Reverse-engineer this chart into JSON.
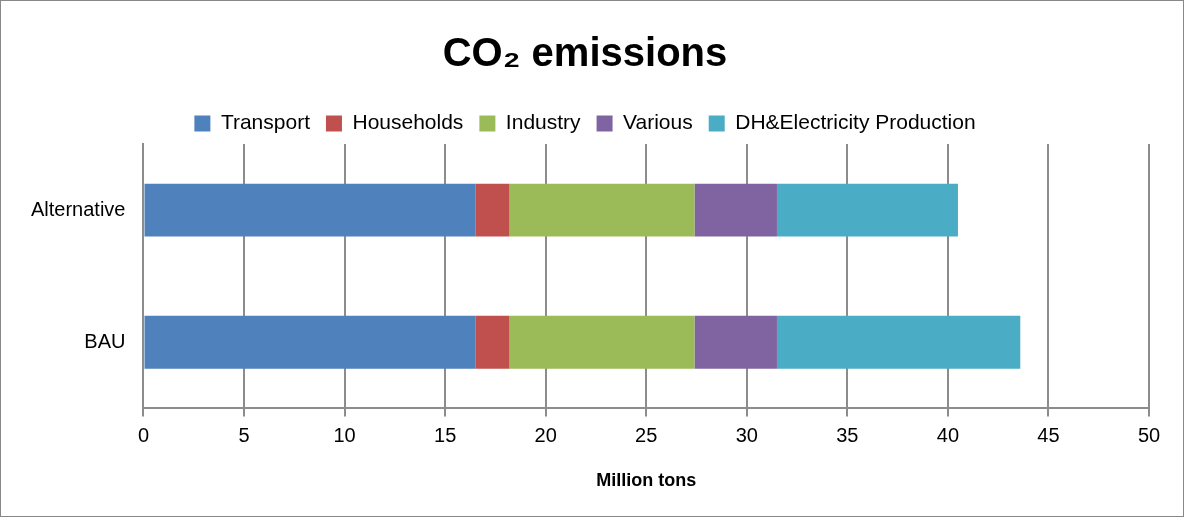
{
  "chart_data": {
    "type": "bar",
    "orientation": "horizontal",
    "stacked": true,
    "title": "CO₂ emissions",
    "xlabel": "Million tons",
    "categories": [
      "Alternative",
      "BAU"
    ],
    "series": [
      {
        "name": "Transport",
        "color": "#4f81bd",
        "values": [
          16.5,
          16.5
        ]
      },
      {
        "name": "Households",
        "color": "#c0504d",
        "values": [
          1.7,
          1.7
        ]
      },
      {
        "name": "Industry",
        "color": "#9bbb59",
        "values": [
          9.2,
          9.2
        ]
      },
      {
        "name": "Various",
        "color": "#8064a2",
        "values": [
          4.1,
          4.1
        ]
      },
      {
        "name": "DH&Electricity Production",
        "color": "#4bacc6",
        "values": [
          9.0,
          12.1
        ]
      }
    ],
    "xlim": [
      0,
      50
    ],
    "xticks": [
      0,
      5,
      10,
      15,
      20,
      25,
      30,
      35,
      40,
      45,
      50
    ],
    "grid": "x",
    "legend": "top"
  }
}
